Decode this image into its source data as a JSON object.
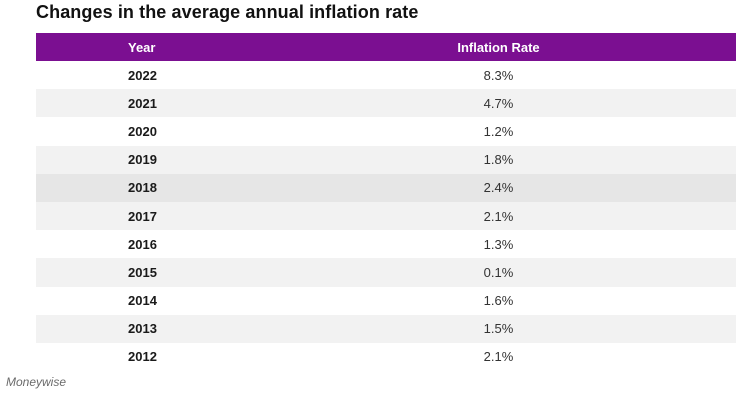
{
  "title": "Changes in the average annual inflation rate",
  "source": "Moneywise",
  "colors": {
    "header_bg": "#7b0f91",
    "row_alt_bg": "#f2f2f2",
    "row_highlight_bg": "#e6e6e6"
  },
  "chart_data": {
    "type": "table",
    "title": "Changes in the average annual inflation rate",
    "columns": [
      "Year",
      "Inflation Rate"
    ],
    "rows": [
      {
        "year": "2022",
        "rate": "8.3%"
      },
      {
        "year": "2021",
        "rate": "4.7%"
      },
      {
        "year": "2020",
        "rate": "1.2%"
      },
      {
        "year": "2019",
        "rate": "1.8%"
      },
      {
        "year": "2018",
        "rate": "2.4%"
      },
      {
        "year": "2017",
        "rate": "2.1%"
      },
      {
        "year": "2016",
        "rate": "1.3%"
      },
      {
        "year": "2015",
        "rate": "0.1%"
      },
      {
        "year": "2014",
        "rate": "1.6%"
      },
      {
        "year": "2013",
        "rate": "1.5%"
      },
      {
        "year": "2012",
        "rate": "2.1%"
      }
    ],
    "highlighted_row_index": 4
  }
}
